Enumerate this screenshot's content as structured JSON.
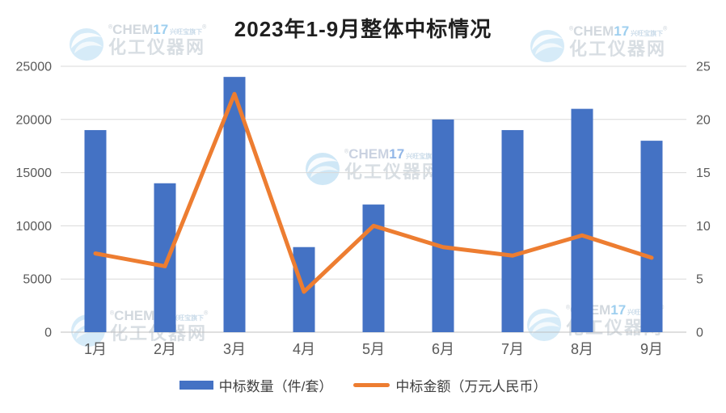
{
  "title": "2023年1-9月整体中标情况",
  "watermark": {
    "brand_gray": "CHEM",
    "brand_blue": "17",
    "registered_mark": "®",
    "tagline": "兴旺宝旗下",
    "site_name": "化工仪器网"
  },
  "colors": {
    "bar": "#4472C4",
    "line": "#ED7D31",
    "grid": "#D9D9D9",
    "axis_baseline": "#BFBFBF",
    "axis_text": "#595959",
    "title_text": "#1F1F1F",
    "watermark_blue": "#A9D6F0"
  },
  "chart_data": {
    "type": "bar+line combo",
    "title": "2023年1-9月整体中标情况",
    "categories": [
      "1月",
      "2月",
      "3月",
      "4月",
      "5月",
      "6月",
      "7月",
      "8月",
      "9月"
    ],
    "series": [
      {
        "name": "中标数量（件/套）",
        "type": "bar",
        "axis": "left",
        "color": "#4472C4",
        "values": [
          19000,
          14000,
          24000,
          8000,
          12000,
          20000,
          19000,
          21000,
          18000
        ]
      },
      {
        "name": "中标金额（万元人民币）",
        "type": "line",
        "axis": "right",
        "color": "#ED7D31",
        "values": [
          7.4,
          6.2,
          22.4,
          3.8,
          10,
          8,
          7.2,
          9.1,
          7
        ]
      }
    ],
    "left_axis": {
      "min": 0,
      "max": 25000,
      "ticks": [
        0,
        5000,
        10000,
        15000,
        20000,
        25000
      ]
    },
    "right_axis": {
      "min": 0,
      "max": 25,
      "ticks": [
        0,
        5,
        10,
        15,
        20,
        25
      ]
    },
    "grid": true,
    "legend_position": "bottom"
  }
}
